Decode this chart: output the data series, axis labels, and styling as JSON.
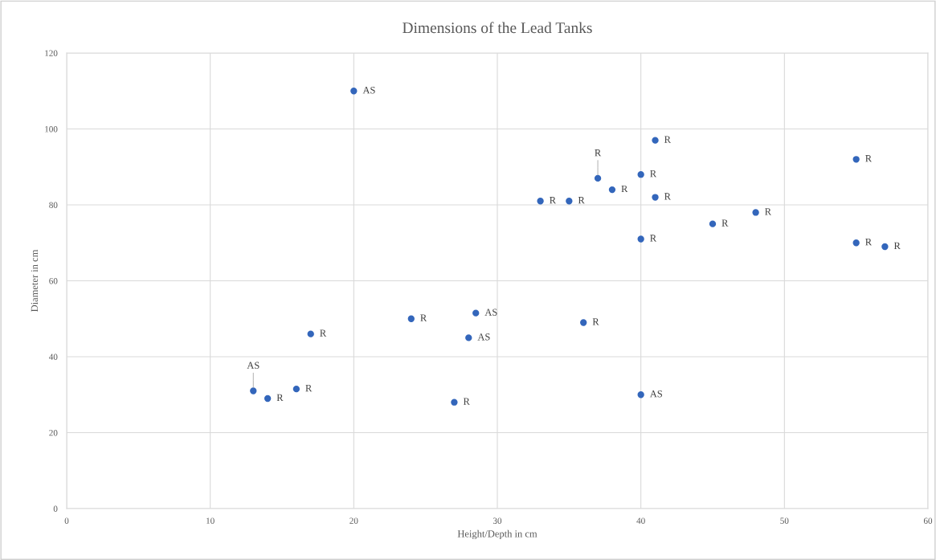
{
  "chart_data": {
    "type": "scatter",
    "title": "Dimensions of the Lead Tanks",
    "xlabel": "Height/Depth in cm",
    "ylabel": "Diameter in cm",
    "x": [
      20,
      41,
      55,
      40,
      37,
      38,
      41,
      33,
      35,
      48,
      45,
      40,
      55,
      57,
      28.5,
      24,
      36,
      17,
      28,
      13,
      16,
      14,
      40,
      27
    ],
    "values": [
      110,
      97,
      92,
      88,
      87,
      84,
      82,
      81,
      81,
      78,
      75,
      71,
      70,
      69,
      51.5,
      50,
      49,
      46,
      45,
      31,
      31.5,
      29,
      30,
      28
    ],
    "color": "#3366bb",
    "marker": "circle",
    "annotations": [
      {
        "text": "AS",
        "x": 20,
        "y": 110
      },
      {
        "text": "R",
        "x": 41,
        "y": 97
      },
      {
        "text": "R",
        "x": 55,
        "y": 92
      },
      {
        "text": "R",
        "x": 40,
        "y": 88
      },
      {
        "text": "R",
        "x": 37,
        "y": 87
      },
      {
        "text": "R",
        "x": 38,
        "y": 84
      },
      {
        "text": "R",
        "x": 41,
        "y": 82
      },
      {
        "text": "R",
        "x": 33,
        "y": 81
      },
      {
        "text": "R",
        "x": 35,
        "y": 81
      },
      {
        "text": "R",
        "x": 48,
        "y": 78
      },
      {
        "text": "R",
        "x": 45,
        "y": 75
      },
      {
        "text": "R",
        "x": 40,
        "y": 71
      },
      {
        "text": "R",
        "x": 55,
        "y": 70
      },
      {
        "text": "R",
        "x": 57,
        "y": 69
      },
      {
        "text": "AS",
        "x": 28.5,
        "y": 51.5
      },
      {
        "text": "R",
        "x": 24,
        "y": 50
      },
      {
        "text": "R",
        "x": 36,
        "y": 49
      },
      {
        "text": "R",
        "x": 17,
        "y": 46
      },
      {
        "text": "AS",
        "x": 28,
        "y": 45
      },
      {
        "text": "AS",
        "x": 13,
        "y": 31
      },
      {
        "text": "R",
        "x": 16,
        "y": 31.5
      },
      {
        "text": "R",
        "x": 14,
        "y": 29
      },
      {
        "text": "AS",
        "x": 40,
        "y": 30
      },
      {
        "text": "R",
        "x": 27,
        "y": 28
      }
    ],
    "xlim": [
      0,
      60
    ],
    "xticks": [
      0,
      10,
      20,
      30,
      40,
      50,
      60
    ],
    "ylim": [
      0,
      120
    ],
    "yticks": [
      0,
      20,
      40,
      60,
      80,
      100,
      120
    ],
    "grid": true
  }
}
